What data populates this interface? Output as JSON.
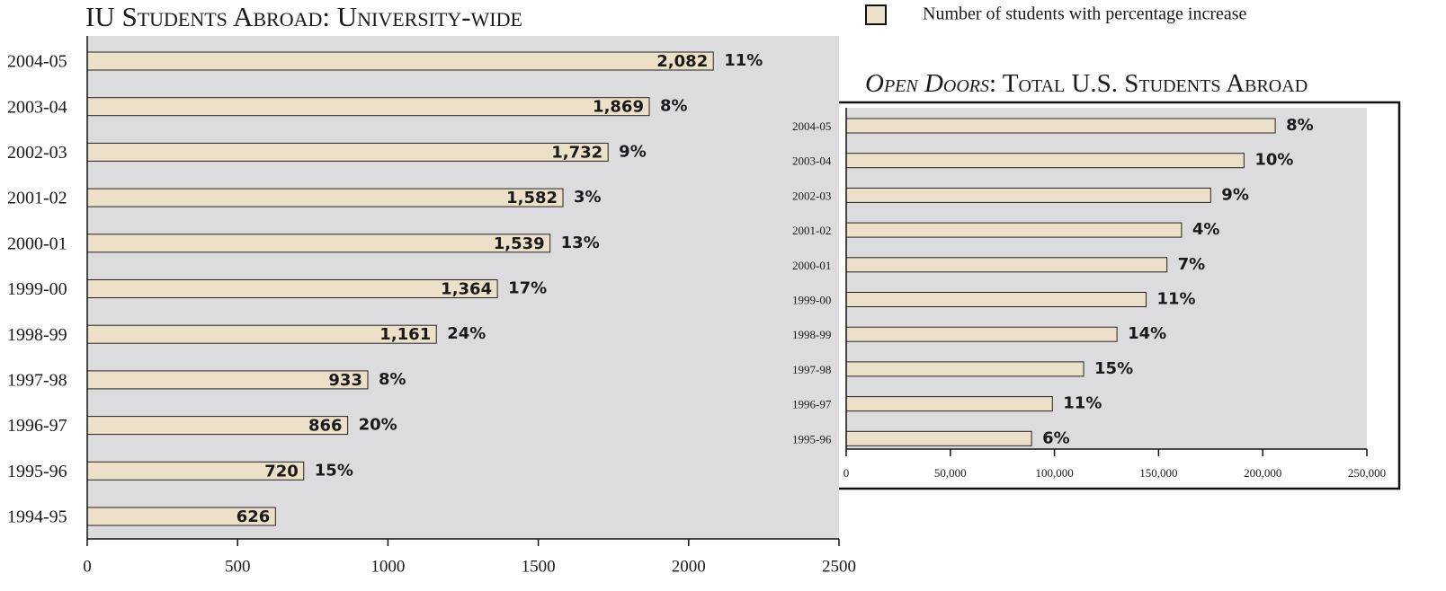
{
  "legend_label": "Number of students with percentage increase",
  "chart_data": [
    {
      "type": "bar",
      "orientation": "horizontal",
      "title": "IU Students Abroad: University-wide",
      "categories": [
        "2004-05",
        "2003-04",
        "2002-03",
        "2001-02",
        "2000-01",
        "1999-00",
        "1998-99",
        "1997-98",
        "1996-97",
        "1995-96",
        "1994-95"
      ],
      "values": [
        2082,
        1869,
        1732,
        1582,
        1539,
        1364,
        1161,
        933,
        866,
        720,
        626
      ],
      "value_labels": [
        "2,082",
        "1,869",
        "1,732",
        "1,582",
        "1,539",
        "1,364",
        "1,161",
        "933",
        "866",
        "720",
        "626"
      ],
      "percent_labels": [
        "11%",
        "8%",
        "9%",
        "3%",
        "13%",
        "17%",
        "24%",
        "8%",
        "20%",
        "15%",
        null
      ],
      "color": "#ede0c8",
      "xlim": [
        0,
        2500
      ],
      "xticks": [
        0,
        500,
        1000,
        1500,
        2000,
        2500
      ]
    },
    {
      "type": "bar",
      "orientation": "horizontal",
      "title_italic": "Open Doors",
      "title": ": Total U.S. Students Abroad",
      "categories": [
        "2004-05",
        "2003-04",
        "2002-03",
        "2001-02",
        "2000-01",
        "1999-00",
        "1998-99",
        "1997-98",
        "1996-97",
        "1995-96"
      ],
      "values": [
        206000,
        191000,
        175000,
        161000,
        154000,
        144000,
        130000,
        114000,
        99000,
        89000
      ],
      "percent_labels": [
        "8%",
        "10%",
        "9%",
        "4%",
        "7%",
        "11%",
        "14%",
        "15%",
        "11%",
        "6%"
      ],
      "color": "#ede0c8",
      "xlim": [
        0,
        250000
      ],
      "xticks": [
        0,
        {
          "value": 50000,
          "label": "50,000"
        },
        {
          "value": 100000,
          "label": "100,000"
        },
        {
          "value": 150000,
          "label": "150,000"
        },
        {
          "value": 200000,
          "label": "200,000"
        },
        {
          "value": 250000,
          "label": "250,000"
        }
      ]
    }
  ]
}
